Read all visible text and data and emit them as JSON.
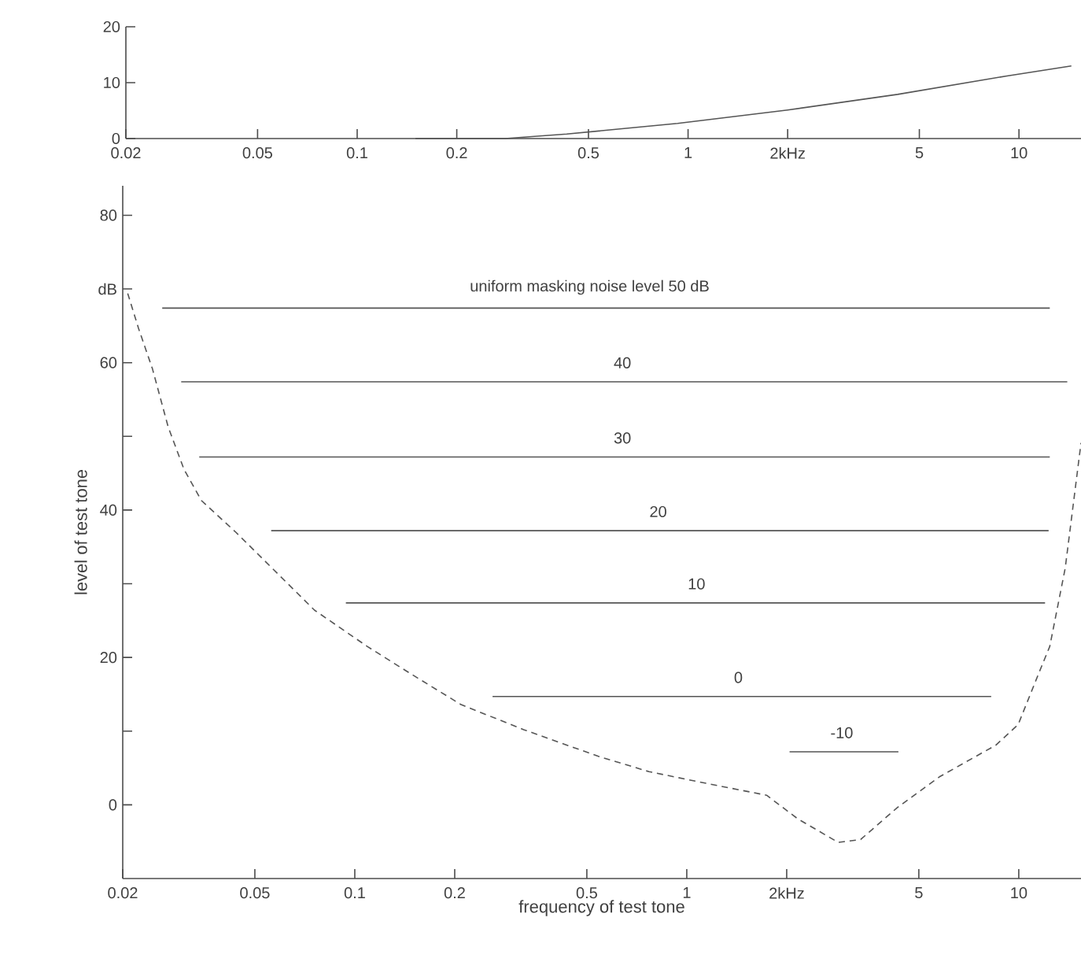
{
  "chart_data": [
    {
      "type": "line",
      "color": "#555555",
      "log": "x",
      "xlim": [
        0.02,
        15.4
      ],
      "ylim": [
        0,
        20
      ],
      "xticks": [
        0.02,
        0.05,
        0.1,
        0.2,
        0.5,
        1,
        {
          "value": 2,
          "label": "2kHz"
        },
        5,
        10
      ],
      "yticks": [
        0,
        10,
        20
      ],
      "x": [
        0.15,
        0.28,
        0.43,
        0.93,
        2.0,
        4.3,
        9.2,
        14.4
      ],
      "values": [
        0,
        0,
        0.8,
        2.7,
        5.1,
        7.9,
        11.2,
        13.0
      ]
    },
    {
      "type": "line",
      "log": "x",
      "xlabel": "frequency of test tone",
      "ylabel": "level of test tone",
      "xlim": [
        0.02,
        15.4
      ],
      "ylim": [
        -10,
        84
      ],
      "xticks": [
        0.02,
        0.05,
        0.1,
        0.2,
        0.5,
        1,
        {
          "value": 2,
          "label": "2kHz"
        },
        5,
        10
      ],
      "yticks": [
        0,
        {
          "value": 10,
          "label": null
        },
        20,
        {
          "value": 30,
          "label": null
        },
        40,
        {
          "value": 50,
          "label": null
        },
        60,
        {
          "value": 70,
          "label": "dB"
        },
        80
      ],
      "series": [
        {
          "color": "#555555",
          "line_style": "solid",
          "x": [
            0.0263,
            12.4
          ],
          "values": [
            67.4,
            67.4
          ]
        },
        {
          "color": "#555555",
          "line_style": "solid",
          "x": [
            0.03,
            14.0
          ],
          "values": [
            57.4,
            57.4
          ]
        },
        {
          "color": "#555555",
          "line_style": "solid",
          "x": [
            0.034,
            12.4
          ],
          "values": [
            47.2,
            47.2
          ]
        },
        {
          "color": "#555555",
          "line_style": "solid",
          "x": [
            0.056,
            12.3
          ],
          "values": [
            37.2,
            37.2
          ]
        },
        {
          "color": "#555555",
          "line_style": "solid",
          "x": [
            0.094,
            12.0
          ],
          "values": [
            27.4,
            27.4
          ]
        },
        {
          "color": "#555555",
          "line_style": "solid",
          "x": [
            0.26,
            8.26
          ],
          "values": [
            14.7,
            14.7
          ]
        },
        {
          "color": "#555555",
          "line_style": "solid",
          "x": [
            2.04,
            4.34
          ],
          "values": [
            7.2,
            7.2
          ]
        },
        {
          "color": "#555555",
          "line_style": "dashed",
          "x": [
            0.0207,
            0.0223,
            0.0246,
            0.0274,
            0.0306,
            0.0345,
            0.0438,
            0.0564,
            0.0757,
            0.109,
            0.146,
            0.209,
            0.323,
            0.54,
            0.77,
            1.12,
            1.74,
            2.16,
            2.86,
            3.34,
            4.3,
            5.77,
            8.53,
            9.96,
            11.5,
            12.4,
            13.8,
            15.4
          ],
          "values": [
            69.4,
            64.7,
            59.1,
            51.3,
            45.5,
            41.3,
            37.0,
            32.1,
            26.4,
            21.5,
            17.9,
            13.6,
            10.2,
            6.6,
            4.5,
            3.0,
            1.3,
            -1.9,
            -5.1,
            -4.7,
            -0.4,
            3.8,
            8.1,
            10.9,
            17.9,
            21.5,
            32.1,
            49.1
          ]
        }
      ],
      "annotations": [
        {
          "text": "uniform masking noise level 50 dB",
          "x": 0.51,
          "y": 67.4
        },
        {
          "text": "40",
          "x": 0.64,
          "y": 57.4
        },
        {
          "text": "30",
          "x": 0.64,
          "y": 47.2
        },
        {
          "text": "20",
          "x": 0.82,
          "y": 37.2
        },
        {
          "text": "10",
          "x": 1.07,
          "y": 27.4
        },
        {
          "text": "0",
          "x": 1.43,
          "y": 14.7
        },
        {
          "text": "-10",
          "x": 2.93,
          "y": 7.2
        }
      ]
    }
  ]
}
